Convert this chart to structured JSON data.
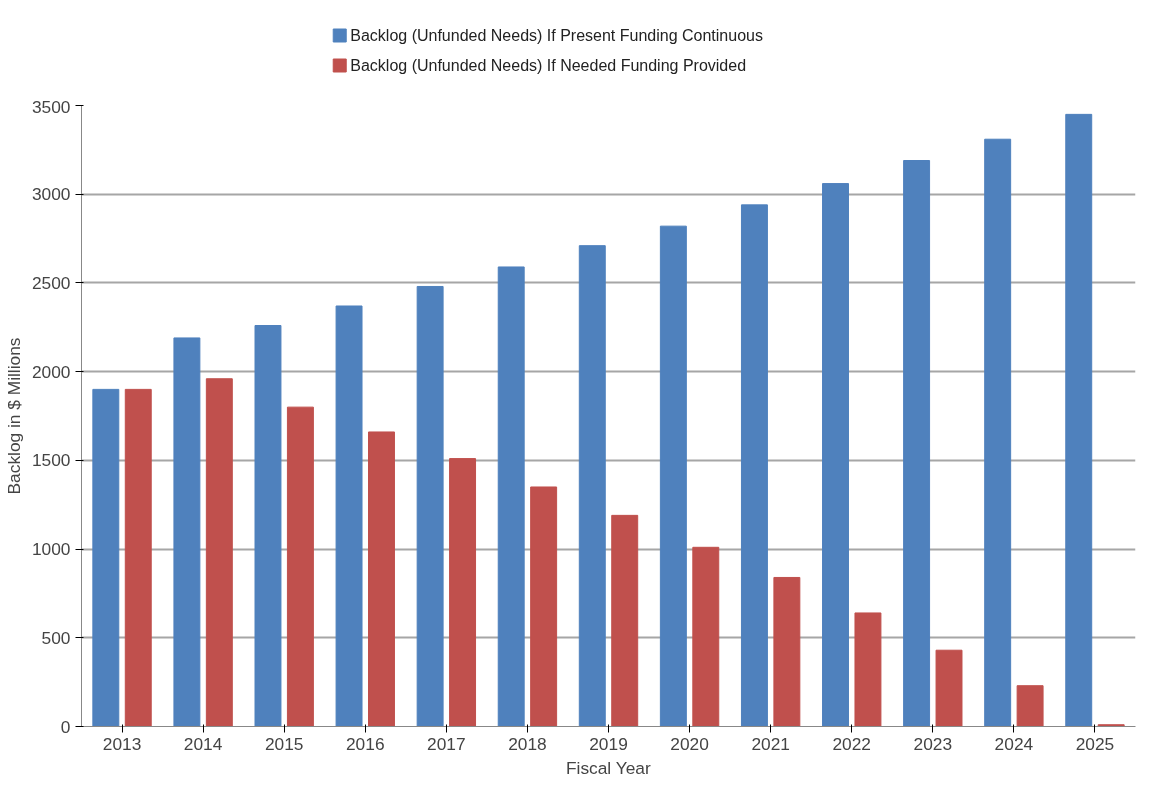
{
  "chart_data": {
    "type": "bar",
    "xlabel": "Fiscal Year",
    "ylabel": "Backlog in $ Millions",
    "categories": [
      "2013",
      "2014",
      "2015",
      "2016",
      "2017",
      "2018",
      "2019",
      "2020",
      "2021",
      "2022",
      "2023",
      "2024",
      "2025"
    ],
    "series": [
      {
        "name": "Backlog (Unfunded Needs) If Present Funding Continuous",
        "color": "#4f81bd",
        "values": [
          1900,
          2190,
          2260,
          2370,
          2480,
          2590,
          2710,
          2820,
          2940,
          3060,
          3190,
          3310,
          3450
        ]
      },
      {
        "name": "Backlog (Unfunded Needs) If Needed Funding Provided",
        "color": "#c0504d",
        "values": [
          1900,
          1960,
          1800,
          1660,
          1510,
          1350,
          1190,
          1010,
          840,
          640,
          430,
          230,
          10
        ]
      }
    ],
    "ylim": [
      0,
      3500
    ],
    "yticks": [
      0,
      500,
      1000,
      1500,
      2000,
      2500,
      3000,
      3500
    ],
    "grid": "y",
    "legend": "top"
  }
}
